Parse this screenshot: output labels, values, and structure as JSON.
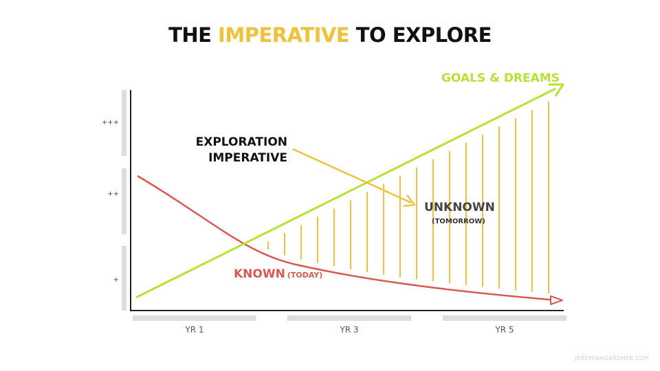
{
  "title": {
    "part1": "THE ",
    "highlight": "IMPERATIVE",
    "part2": " TO EXPLORE"
  },
  "labels": {
    "goals": "GOALS & DREAMS",
    "exploration_line1": "EXPLORATION",
    "exploration_line2": "IMPERATIVE",
    "unknown": "UNKNOWN",
    "tomorrow": "(TOMORROW)",
    "known": "KNOWN",
    "today": "(TODAY)"
  },
  "y_ticks": [
    "+++",
    "++",
    "+"
  ],
  "x_ticks": [
    "YR 1",
    "YR 3",
    "YR 5"
  ],
  "credit": "JEREMIAHGARDNER.COM",
  "colors": {
    "goals": "#b6e232",
    "known": "#d9584f",
    "exploration": "#f0c23b",
    "axis": "#222222",
    "band": "#dddddd"
  }
}
